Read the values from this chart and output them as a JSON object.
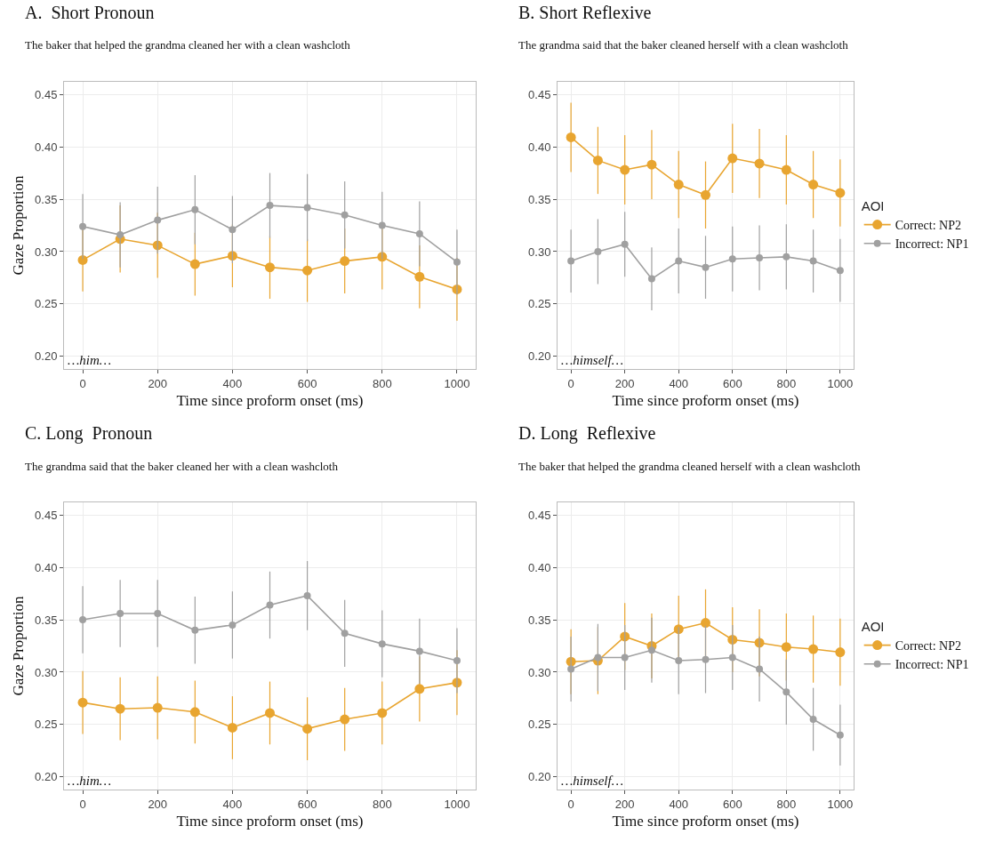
{
  "chart_data": [
    {
      "type": "line",
      "title": "A.  Short Pronoun",
      "subtitle": "The baker that helped the grandma cleaned her with a clean washcloth",
      "xlabel": "Time since proform onset (ms)",
      "ylabel": "Gaze Proportion",
      "annotations": [
        "…him…"
      ],
      "x": [
        0,
        100,
        200,
        300,
        400,
        500,
        600,
        700,
        800,
        900,
        1000
      ],
      "series": [
        {
          "color": "#e8a530",
          "values": [
            0.292,
            0.312,
            0.306,
            0.288,
            0.296,
            0.285,
            0.282,
            0.291,
            0.295,
            0.276,
            0.264
          ],
          "errors": [
            0.03,
            0.032,
            0.031,
            0.03,
            0.03,
            0.03,
            0.03,
            0.031,
            0.031,
            0.03,
            0.03
          ]
        },
        {
          "color": "#a0a0a0",
          "values": [
            0.324,
            0.316,
            0.33,
            0.34,
            0.321,
            0.344,
            0.342,
            0.335,
            0.325,
            0.317,
            0.29
          ],
          "errors": [
            0.031,
            0.031,
            0.032,
            0.033,
            0.032,
            0.031,
            0.032,
            0.032,
            0.032,
            0.031,
            0.031
          ]
        }
      ],
      "xlim": [
        -50,
        1050
      ],
      "xticks": [
        0,
        200,
        400,
        600,
        800,
        1000
      ],
      "ylim": [
        0.188,
        0.462
      ],
      "yticks": [
        {
          "value": 0.2,
          "label": "0.20"
        },
        0.25,
        {
          "value": 0.3,
          "label": "0.30"
        },
        0.35,
        {
          "value": 0.4,
          "label": "0.40"
        },
        0.45
      ],
      "grid": true,
      "legend": false,
      "marker": "circle",
      "line_style": "solid"
    },
    {
      "type": "line",
      "title": "B. Short Reflexive",
      "subtitle": "The grandma said that the baker cleaned herself with a clean washcloth",
      "xlabel": "Time since proform onset (ms)",
      "legend_title": "AOI",
      "annotations": [
        "…himself…"
      ],
      "x": [
        0,
        100,
        200,
        300,
        400,
        500,
        600,
        700,
        800,
        900,
        1000
      ],
      "series": [
        {
          "name": "Correct: NP2",
          "color": "#e8a530",
          "values": [
            0.409,
            0.387,
            0.378,
            0.383,
            0.364,
            0.354,
            0.389,
            0.384,
            0.378,
            0.364,
            0.356
          ],
          "errors": [
            0.033,
            0.032,
            0.033,
            0.033,
            0.032,
            0.032,
            0.033,
            0.033,
            0.033,
            0.032,
            0.032
          ]
        },
        {
          "name": "Incorrect: NP1",
          "color": "#a0a0a0",
          "values": [
            0.291,
            0.3,
            0.307,
            0.274,
            0.291,
            0.285,
            0.293,
            0.294,
            0.295,
            0.291,
            0.282
          ],
          "errors": [
            0.03,
            0.031,
            0.031,
            0.03,
            0.031,
            0.03,
            0.031,
            0.031,
            0.031,
            0.03,
            0.03
          ]
        }
      ],
      "xlim": [
        -50,
        1050
      ],
      "xticks": [
        0,
        200,
        400,
        600,
        800,
        1000
      ],
      "ylim": [
        0.188,
        0.462
      ],
      "yticks": [
        {
          "value": 0.2,
          "label": "0.20"
        },
        0.25,
        {
          "value": 0.3,
          "label": "0.30"
        },
        0.35,
        {
          "value": 0.4,
          "label": "0.40"
        },
        0.45
      ],
      "grid": true,
      "legend": "right",
      "marker": "circle",
      "line_style": "solid"
    },
    {
      "type": "line",
      "title": "C. Long  Pronoun",
      "subtitle": "The grandma said that the baker cleaned her with a clean washcloth",
      "xlabel": "Time since proform onset (ms)",
      "ylabel": "Gaze Proportion",
      "annotations": [
        "…him…"
      ],
      "x": [
        0,
        100,
        200,
        300,
        400,
        500,
        600,
        700,
        800,
        900,
        1000
      ],
      "series": [
        {
          "color": "#e8a530",
          "values": [
            0.271,
            0.265,
            0.266,
            0.262,
            0.247,
            0.261,
            0.246,
            0.255,
            0.261,
            0.284,
            0.29
          ],
          "errors": [
            0.03,
            0.03,
            0.03,
            0.03,
            0.03,
            0.03,
            0.03,
            0.03,
            0.03,
            0.031,
            0.031
          ]
        },
        {
          "color": "#a0a0a0",
          "values": [
            0.35,
            0.356,
            0.356,
            0.34,
            0.345,
            0.364,
            0.373,
            0.337,
            0.327,
            0.32,
            0.311
          ],
          "errors": [
            0.032,
            0.032,
            0.032,
            0.032,
            0.032,
            0.032,
            0.033,
            0.032,
            0.032,
            0.031,
            0.031
          ]
        }
      ],
      "xlim": [
        -50,
        1050
      ],
      "xticks": [
        0,
        200,
        400,
        600,
        800,
        1000
      ],
      "ylim": [
        0.188,
        0.462
      ],
      "yticks": [
        {
          "value": 0.2,
          "label": "0.20"
        },
        0.25,
        {
          "value": 0.3,
          "label": "0.30"
        },
        0.35,
        {
          "value": 0.4,
          "label": "0.40"
        },
        0.45
      ],
      "grid": true,
      "legend": false,
      "marker": "circle",
      "line_style": "solid"
    },
    {
      "type": "line",
      "title": "D. Long  Reflexive",
      "subtitle": "The baker that helped the grandma cleaned herself with a clean washcloth",
      "xlabel": "Time since proform onset (ms)",
      "legend_title": "AOI",
      "annotations": [
        "…himself…"
      ],
      "x": [
        0,
        100,
        200,
        300,
        400,
        500,
        600,
        700,
        800,
        900,
        1000
      ],
      "series": [
        {
          "name": "Correct: NP2",
          "color": "#e8a530",
          "values": [
            0.31,
            0.311,
            0.334,
            0.325,
            0.341,
            0.347,
            0.331,
            0.328,
            0.324,
            0.322,
            0.319
          ],
          "errors": [
            0.031,
            0.032,
            0.032,
            0.031,
            0.032,
            0.032,
            0.031,
            0.032,
            0.032,
            0.032,
            0.032
          ]
        },
        {
          "name": "Incorrect: NP1",
          "color": "#a0a0a0",
          "values": [
            0.303,
            0.314,
            0.314,
            0.321,
            0.311,
            0.312,
            0.314,
            0.303,
            0.281,
            0.255,
            0.24
          ],
          "errors": [
            0.031,
            0.032,
            0.031,
            0.031,
            0.032,
            0.032,
            0.031,
            0.031,
            0.031,
            0.03,
            0.029
          ]
        }
      ],
      "xlim": [
        -50,
        1050
      ],
      "xticks": [
        0,
        200,
        400,
        600,
        800,
        1000
      ],
      "ylim": [
        0.188,
        0.462
      ],
      "yticks": [
        {
          "value": 0.2,
          "label": "0.20"
        },
        0.25,
        {
          "value": 0.3,
          "label": "0.30"
        },
        0.35,
        {
          "value": 0.4,
          "label": "0.40"
        },
        0.45
      ],
      "grid": true,
      "legend": "right",
      "marker": "circle",
      "line_style": "solid"
    }
  ]
}
